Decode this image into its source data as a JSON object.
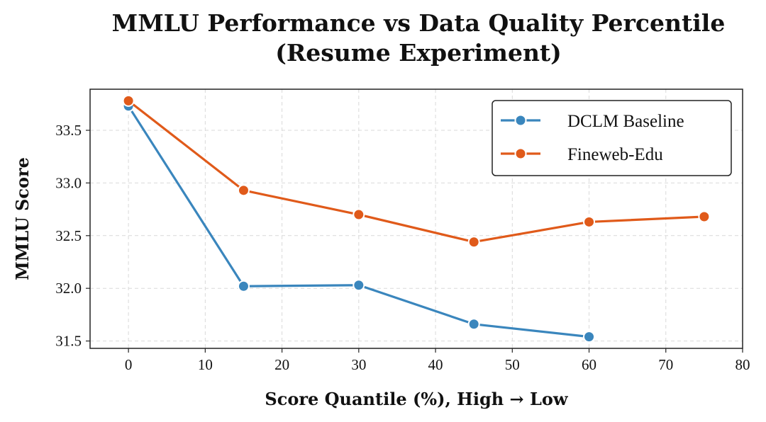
{
  "chart_data": {
    "type": "line",
    "title_line1": "MMLU Performance vs Data Quality Percentile",
    "title_line2": "(Resume Experiment)",
    "xlabel": "Score Quantile (%), High → Low",
    "ylabel": "MMLU Score",
    "xlim": [
      -5,
      80
    ],
    "ylim": [
      31.43,
      33.89
    ],
    "xticks": [
      0,
      10,
      20,
      30,
      40,
      50,
      60,
      70,
      80
    ],
    "yticks": [
      31.5,
      32.0,
      32.5,
      33.0,
      33.5
    ],
    "grid": true,
    "legend_position": "top-right",
    "series": [
      {
        "name": "DCLM Baseline",
        "color": "#3a86bd",
        "x": [
          0,
          15,
          30,
          45,
          60
        ],
        "y": [
          33.73,
          32.02,
          32.03,
          31.66,
          31.54
        ]
      },
      {
        "name": "Fineweb-Edu",
        "color": "#e05a1a",
        "x": [
          0,
          15,
          30,
          45,
          60,
          75
        ],
        "y": [
          33.78,
          32.93,
          32.7,
          32.44,
          32.63,
          32.68
        ]
      }
    ]
  }
}
